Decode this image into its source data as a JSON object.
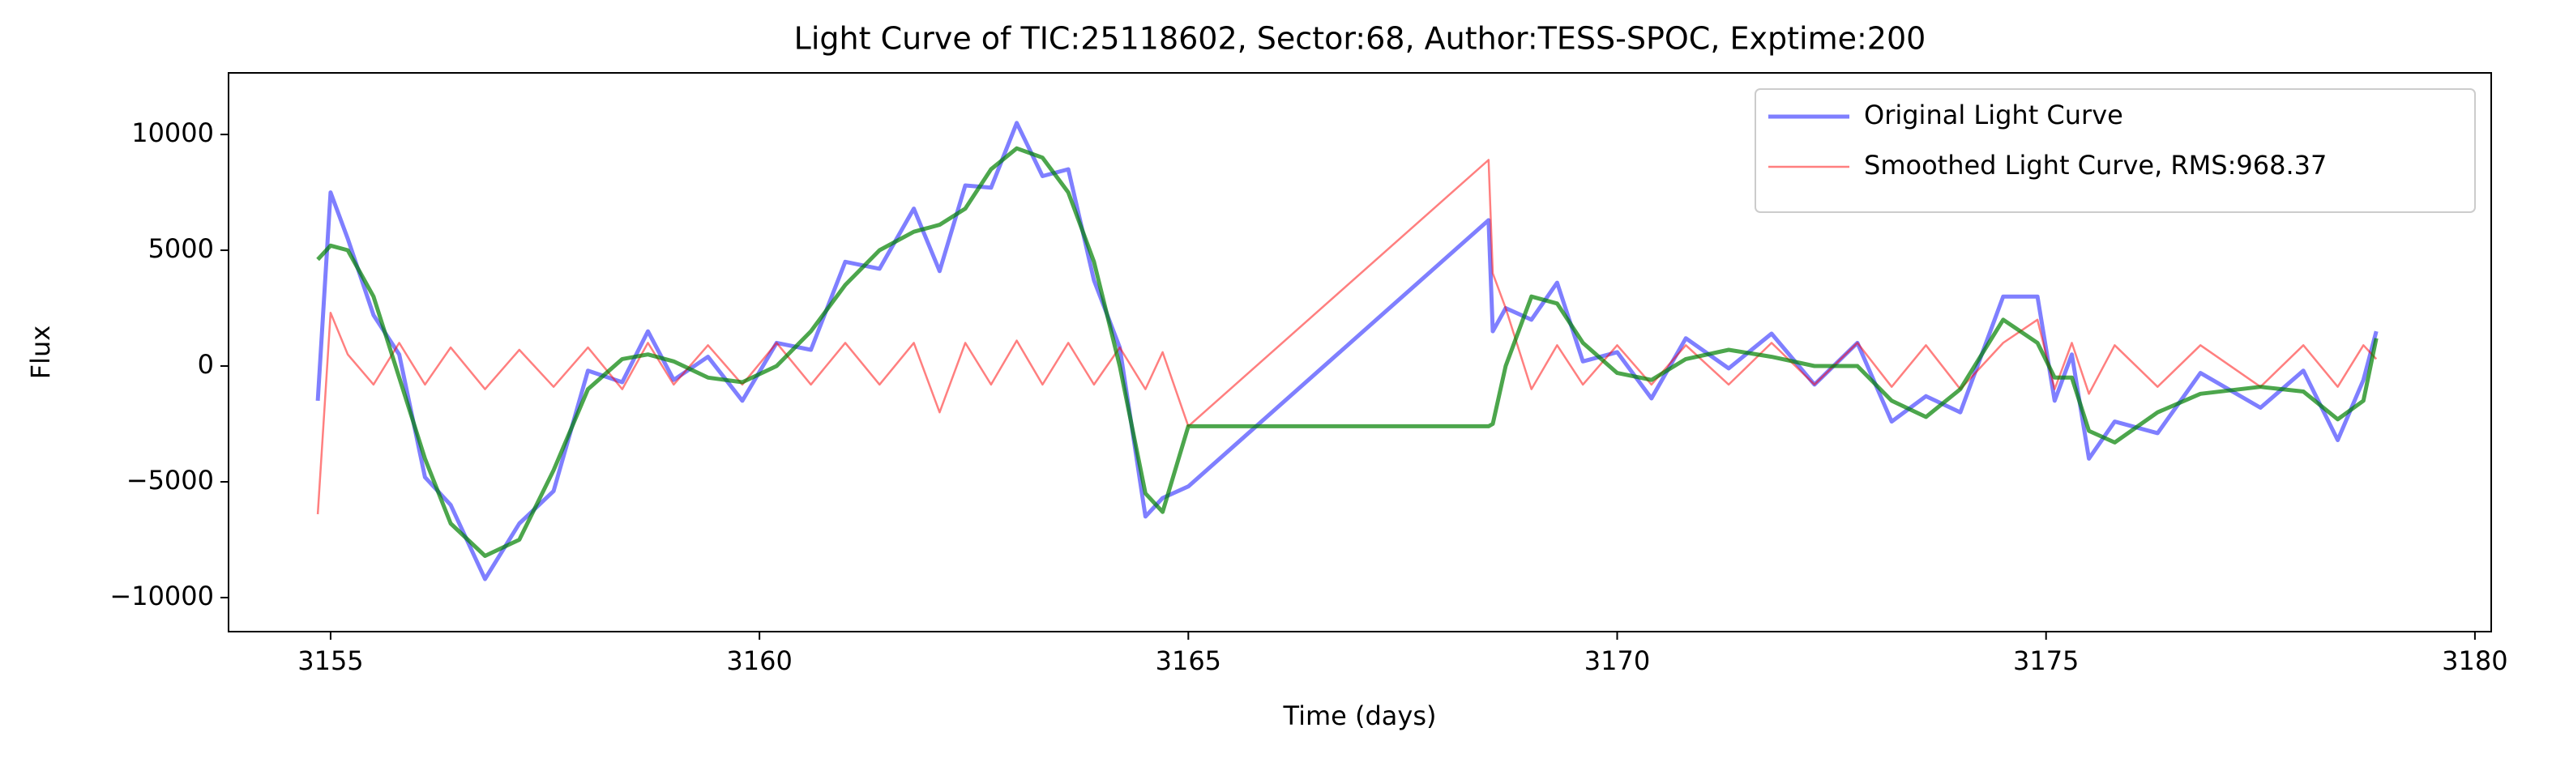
{
  "chart_data": {
    "type": "line",
    "title": "Light Curve of TIC:25118602, Sector:68, Author:TESS-SPOC, Exptime:200",
    "x_label": "Time (days)",
    "y_label": "Flux",
    "x": [
      3154.85,
      3155.0,
      3155.2,
      3155.5,
      3155.8,
      3156.1,
      3156.4,
      3156.8,
      3157.2,
      3157.6,
      3158.0,
      3158.4,
      3158.7,
      3159.0,
      3159.4,
      3159.8,
      3160.2,
      3160.6,
      3161.0,
      3161.4,
      3161.8,
      3162.1,
      3162.4,
      3162.7,
      3163.0,
      3163.3,
      3163.6,
      3163.9,
      3164.2,
      3164.5,
      3164.7,
      3165.0,
      3168.5,
      3168.55,
      3168.7,
      3169.0,
      3169.3,
      3169.6,
      3170.0,
      3170.4,
      3170.8,
      3171.3,
      3171.8,
      3172.3,
      3172.8,
      3173.2,
      3173.6,
      3174.0,
      3174.5,
      3174.9,
      3175.1,
      3175.3,
      3175.5,
      3175.8,
      3176.3,
      3176.8,
      3177.5,
      3178.0,
      3178.4,
      3178.7,
      3178.85
    ],
    "series": [
      {
        "name": "Original Light Curve",
        "color": "#0000ff",
        "values": [
          -1500,
          7500,
          5500,
          2200,
          500,
          -4800,
          -6000,
          -9200,
          -6800,
          -5400,
          -200,
          -700,
          1500,
          -600,
          400,
          -1500,
          1000,
          700,
          4500,
          4200,
          6800,
          4100,
          7800,
          7700,
          10500,
          8200,
          8500,
          3700,
          800,
          -6500,
          -5700,
          -5200,
          6300,
          1500,
          2500,
          2000,
          3600,
          200,
          600,
          -1400,
          1200,
          -100,
          1400,
          -800,
          1000,
          -2400,
          -1300,
          -2000,
          3000,
          3000,
          -1500,
          500,
          -4000,
          -2400,
          -2900,
          -300,
          -1800,
          -200,
          -3200,
          -600,
          1500
        ]
      },
      {
        "name": "Smoothed Light Curve, RMS:968.37",
        "color": "#ff0000",
        "values": [
          -6400,
          2300,
          500,
          -800,
          1000,
          -800,
          800,
          -1000,
          700,
          -900,
          800,
          -1000,
          1000,
          -800,
          900,
          -800,
          1000,
          -800,
          1000,
          -800,
          1000,
          -2000,
          1000,
          -800,
          1100,
          -800,
          1000,
          -800,
          800,
          -1000,
          600,
          -2600,
          8900,
          4000,
          2500,
          -1000,
          900,
          -800,
          900,
          -800,
          900,
          -800,
          1000,
          -800,
          1000,
          -900,
          900,
          -1000,
          1000,
          2000,
          -1000,
          1000,
          -1200,
          900,
          -900,
          900,
          -900,
          900,
          -900,
          900,
          300
        ]
      },
      {
        "color": "#008000",
        "values": [
          4600,
          5200,
          5000,
          3000,
          -500,
          -4000,
          -6800,
          -8200,
          -7500,
          -4500,
          -1000,
          300,
          500,
          200,
          -500,
          -700,
          0,
          1500,
          3500,
          5000,
          5800,
          6100,
          6800,
          8500,
          9400,
          9000,
          7500,
          4500,
          0,
          -5500,
          -6300,
          -2600,
          -2600,
          -2500,
          0,
          3000,
          2700,
          1000,
          -300,
          -600,
          300,
          700,
          400,
          0,
          0,
          -1500,
          -2200,
          -1000,
          2000,
          1000,
          -500,
          -500,
          -2800,
          -3300,
          -2000,
          -1200,
          -900,
          -1100,
          -2300,
          -1500,
          1200
        ]
      }
    ],
    "xlim": [
      3153.81,
      3180.19
    ],
    "xticks": [
      3155,
      3160,
      3165,
      3170,
      3175,
      3180
    ],
    "ylim": [
      -11470,
      12660
    ],
    "yticks": [
      {
        "value": -10000,
        "label": "−10000"
      },
      {
        "value": -5000,
        "label": "−5000"
      },
      0,
      5000,
      10000
    ],
    "legend": "upper right"
  }
}
